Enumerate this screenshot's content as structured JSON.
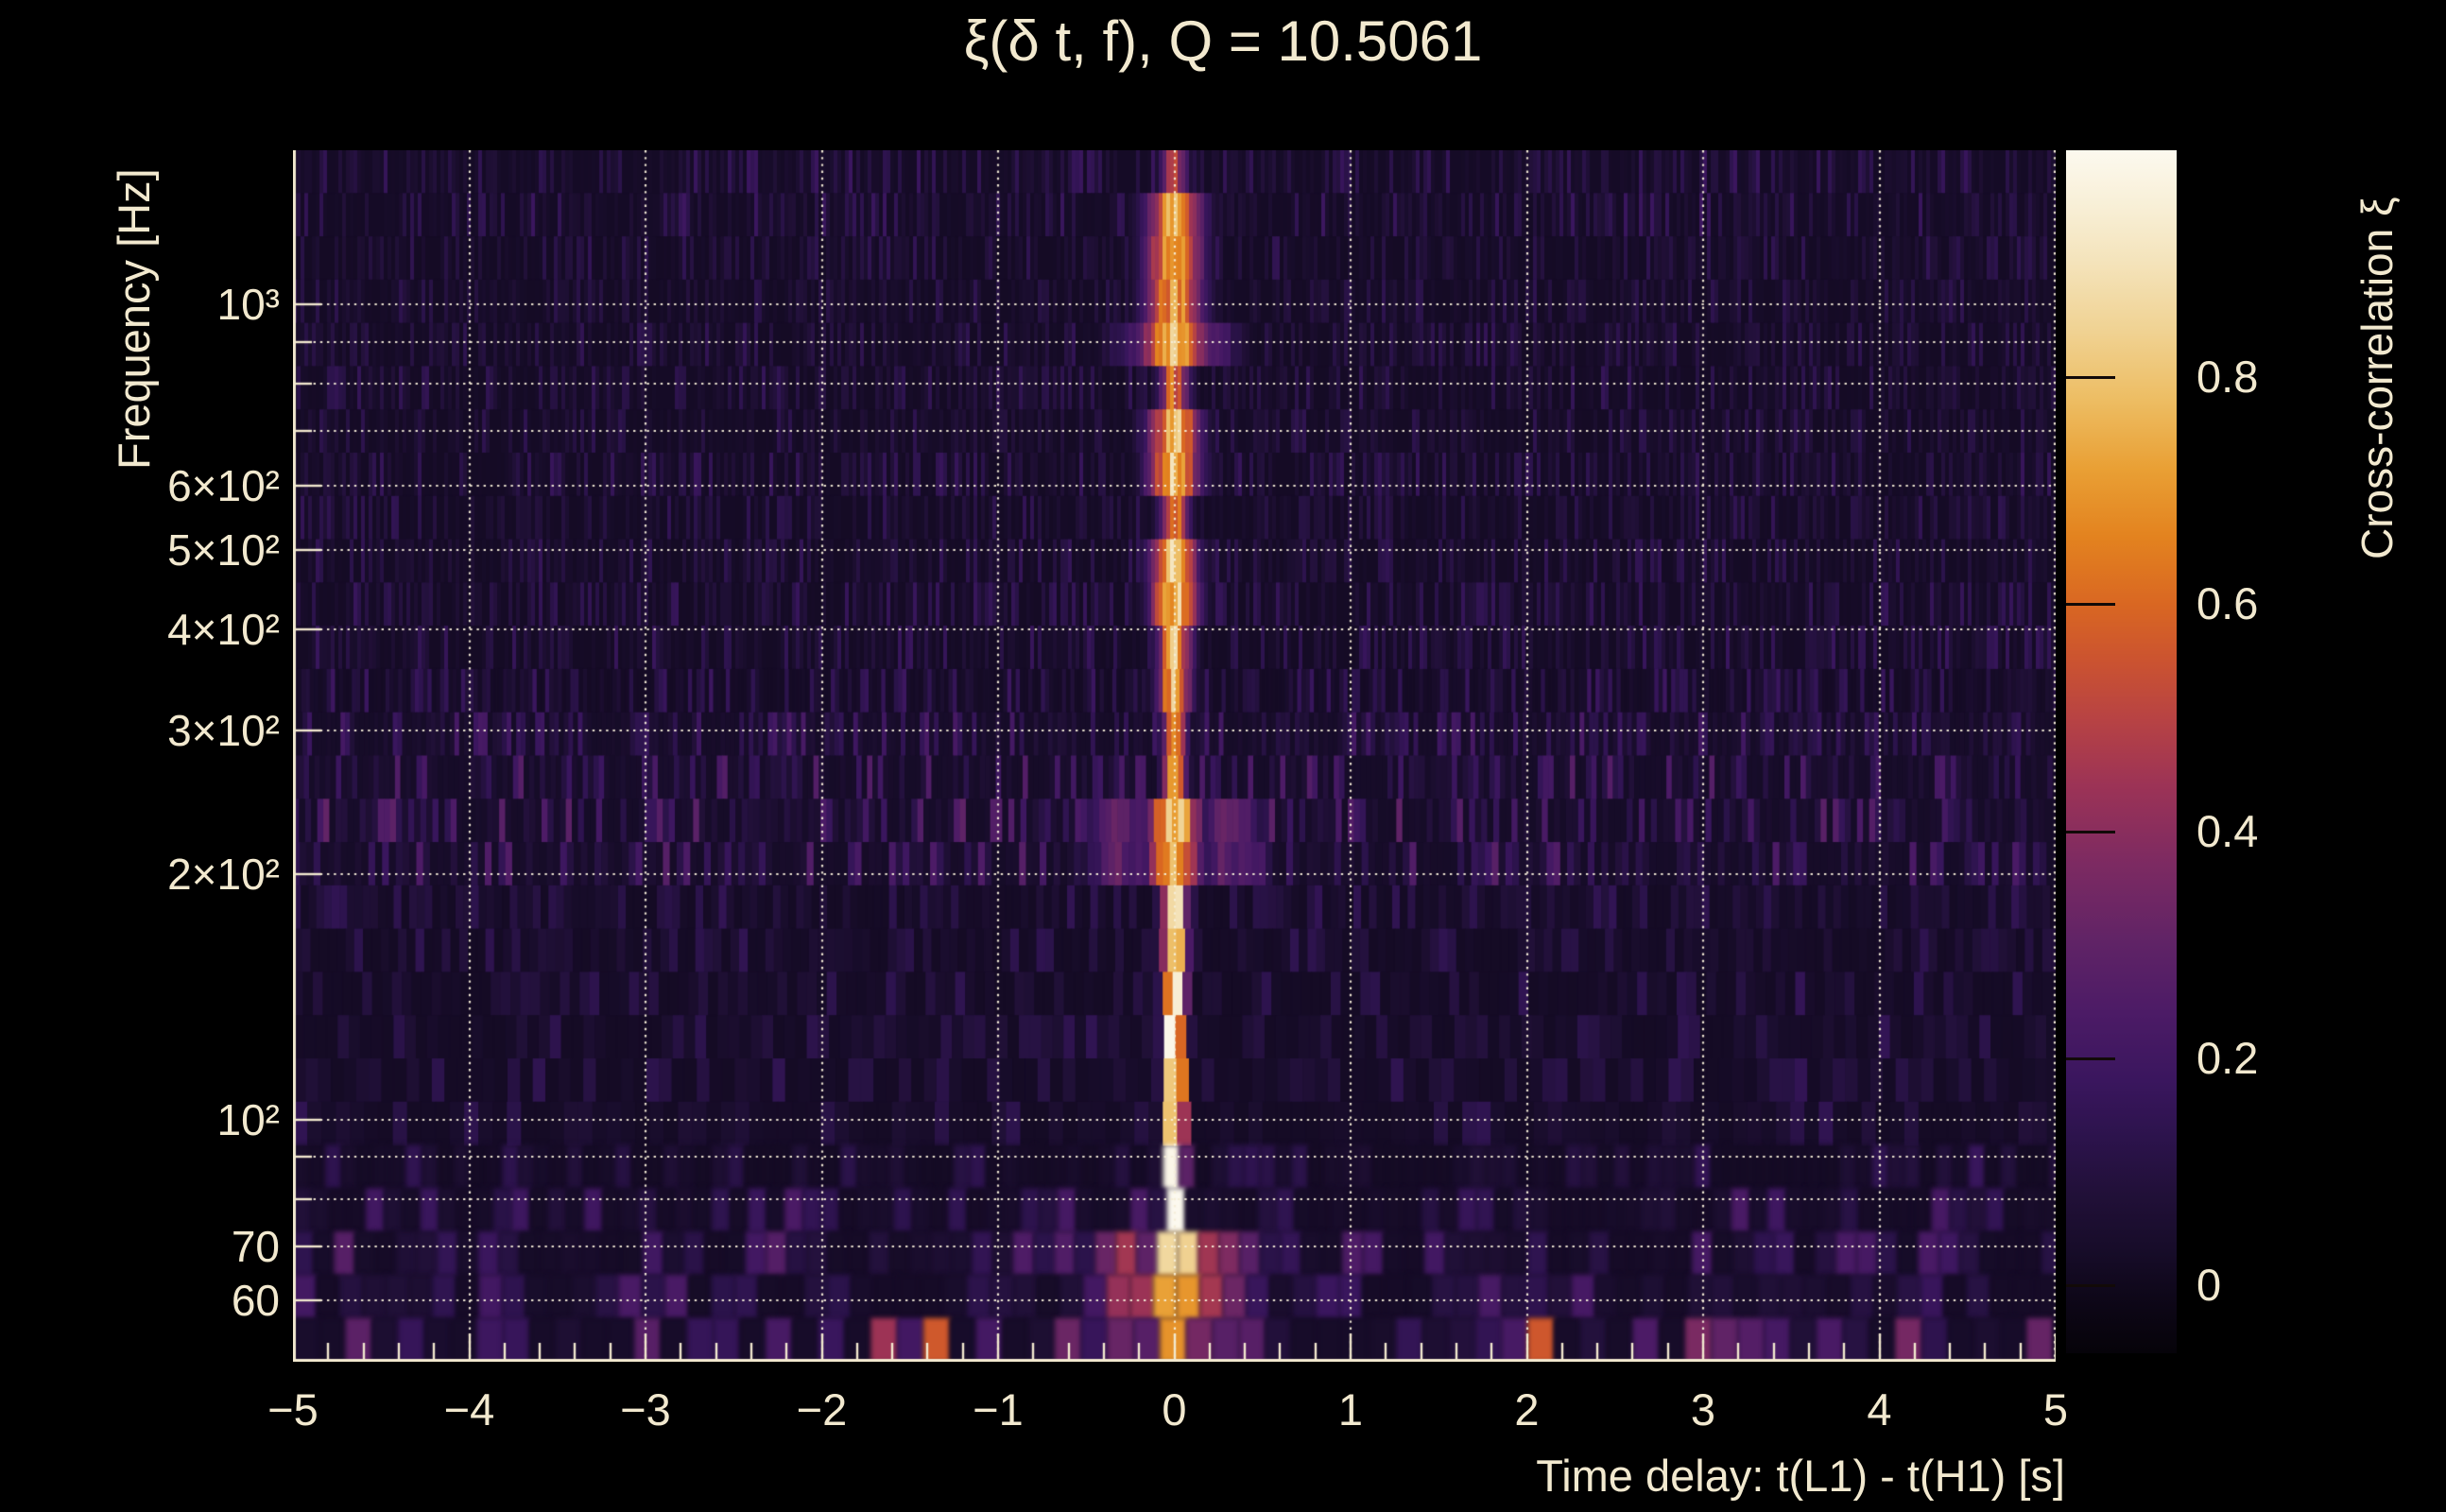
{
  "title": "ξ(δ t, f), Q = 10.5061",
  "q_value": "10.5061",
  "colors": {
    "background": "#000000",
    "text": "#f2e9cf",
    "axis": "#f2e9cf",
    "grid": "#f6eed8"
  },
  "axes": {
    "x": {
      "title": "Time delay: t(L1) - t(H1) [s]",
      "range": [
        -5,
        5
      ],
      "minor_tick_step": 0.2,
      "ticks": [
        {
          "value": -5,
          "label": "−5"
        },
        {
          "value": -4,
          "label": "−4"
        },
        {
          "value": -3,
          "label": "−3"
        },
        {
          "value": -2,
          "label": "−2"
        },
        {
          "value": -1,
          "label": "−1"
        },
        {
          "value": 0,
          "label": "0"
        },
        {
          "value": 1,
          "label": "1"
        },
        {
          "value": 2,
          "label": "2"
        },
        {
          "value": 3,
          "label": "3"
        },
        {
          "value": 4,
          "label": "4"
        },
        {
          "value": 5,
          "label": "5"
        }
      ]
    },
    "y": {
      "title": "Frequency [Hz]",
      "scale": "log",
      "range_hz": [
        50.5,
        1546
      ],
      "ticks": [
        {
          "value": 1000,
          "label": "10³"
        },
        {
          "value": 600,
          "label": "6×10²"
        },
        {
          "value": 500,
          "label": "5×10²"
        },
        {
          "value": 400,
          "label": "4×10²"
        },
        {
          "value": 300,
          "label": "3×10²"
        },
        {
          "value": 200,
          "label": "2×10²"
        },
        {
          "value": 100,
          "label": "10²"
        },
        {
          "value": 70,
          "label": "70"
        },
        {
          "value": 60,
          "label": "60"
        }
      ],
      "grid_hz": [
        60,
        70,
        80,
        90,
        100,
        200,
        300,
        400,
        500,
        600,
        700,
        800,
        900,
        1000
      ]
    },
    "colorbar": {
      "title": "Cross-correlation ξ",
      "range": [
        -0.06,
        1.0
      ],
      "ticks": [
        {
          "value": 0.8,
          "label": "0.8"
        },
        {
          "value": 0.6,
          "label": "0.6"
        },
        {
          "value": 0.4,
          "label": "0.4"
        },
        {
          "value": 0.2,
          "label": "0.2"
        },
        {
          "value": 0,
          "label": "0"
        }
      ]
    }
  },
  "chart_data": {
    "type": "heatmap",
    "title": "ξ(δ t, f), Q = 10.5061",
    "xlabel": "Time delay: t(L1) - t(H1) [s]",
    "ylabel": "Frequency [Hz]",
    "colorbar_label": "Cross-correlation ξ",
    "x_range_s": [
      -5,
      5
    ],
    "y_range_hz": [
      50.5,
      1546
    ],
    "y_scale": "log",
    "colorbar_range": [
      -0.06,
      1.0
    ],
    "grid_style": "dotted",
    "peak": {
      "time_delay_s": 0,
      "xi": 1.0,
      "frequency_band_hz": [
        70,
        180
      ]
    },
    "ridge": [
      {
        "f_lo": 1300,
        "f_hi": 1560,
        "sigma_s": 0.05,
        "peak": 0.5
      },
      {
        "f_lo": 1000,
        "f_hi": 1300,
        "sigma_s": 0.11,
        "peak": 0.72
      },
      {
        "f_lo": 840,
        "f_hi": 1000,
        "sigma_s": 0.13,
        "peak": 0.82,
        "wing_amp": 0.2,
        "wing_pos_s": 0.25,
        "wing_sigma_s": 0.1
      },
      {
        "f_lo": 700,
        "f_hi": 840,
        "sigma_s": 0.06,
        "peak": 0.6
      },
      {
        "f_lo": 610,
        "f_hi": 700,
        "sigma_s": 0.1,
        "peak": 0.78
      },
      {
        "f_lo": 515,
        "f_hi": 610,
        "sigma_s": 0.055,
        "peak": 0.68
      },
      {
        "f_lo": 425,
        "f_hi": 515,
        "sigma_s": 0.09,
        "peak": 0.82
      },
      {
        "f_lo": 330,
        "f_hi": 425,
        "sigma_s": 0.065,
        "peak": 0.76
      },
      {
        "f_lo": 235,
        "f_hi": 330,
        "sigma_s": 0.045,
        "peak": 0.7
      },
      {
        "f_lo": 185,
        "f_hi": 235,
        "sigma_s": 0.1,
        "peak": 0.82,
        "wing_amp": 0.28,
        "wing_pos_s": 0.3,
        "wing_sigma_s": 0.15
      },
      {
        "f_lo": 145,
        "f_hi": 185,
        "sigma_s": 0.05,
        "peak": 0.95
      },
      {
        "f_lo": 72,
        "f_hi": 145,
        "sigma_s": 0.045,
        "peak": 1.0
      },
      {
        "f_lo": 55,
        "f_hi": 72,
        "sigma_s": 0.1,
        "peak": 1.0,
        "wing_amp": 0.42,
        "wing_pos_s": 0.28,
        "wing_sigma_s": 0.16
      },
      {
        "f_lo": 48,
        "f_hi": 55,
        "sigma_s": 0.06,
        "peak": 0.85,
        "wing_amp": 0.3,
        "wing_pos_s": 0.3,
        "wing_sigma_s": 0.18
      }
    ],
    "noise_bands": [
      {
        "f_lo": 48,
        "f_hi": 57,
        "base": 0.03,
        "amp": 0.42
      },
      {
        "f_lo": 57,
        "f_hi": 80,
        "base": 0.025,
        "amp": 0.22
      },
      {
        "f_lo": 80,
        "f_hi": 195,
        "base": 0.02,
        "amp": 0.11
      },
      {
        "f_lo": 195,
        "f_hi": 330,
        "base": 0.027,
        "amp": 0.2
      },
      {
        "f_lo": 330,
        "f_hi": 700,
        "base": 0.02,
        "amp": 0.12
      },
      {
        "f_lo": 700,
        "f_hi": 1200,
        "base": 0.02,
        "amp": 0.1
      },
      {
        "f_lo": 1200,
        "f_hi": 1560,
        "base": 0.022,
        "amp": 0.15
      }
    ],
    "colormap": [
      [
        -0.06,
        "#060309"
      ],
      [
        -0.01,
        "#0e0719"
      ],
      [
        0.03,
        "#170c29"
      ],
      [
        0.08,
        "#211038"
      ],
      [
        0.13,
        "#2c134c"
      ],
      [
        0.18,
        "#3a165e"
      ],
      [
        0.24,
        "#4c1b66"
      ],
      [
        0.3,
        "#5f2366"
      ],
      [
        0.37,
        "#7c2a62"
      ],
      [
        0.44,
        "#9c3356"
      ],
      [
        0.5,
        "#b84343"
      ],
      [
        0.55,
        "#cb5330"
      ],
      [
        0.6,
        "#d96722"
      ],
      [
        0.66,
        "#e3831f"
      ],
      [
        0.72,
        "#e9a035"
      ],
      [
        0.78,
        "#edbd63"
      ],
      [
        0.84,
        "#f0d292"
      ],
      [
        0.9,
        "#f4e3ba"
      ],
      [
        0.95,
        "#f8efd6"
      ],
      [
        1.0,
        "#fcf9ef"
      ]
    ]
  }
}
